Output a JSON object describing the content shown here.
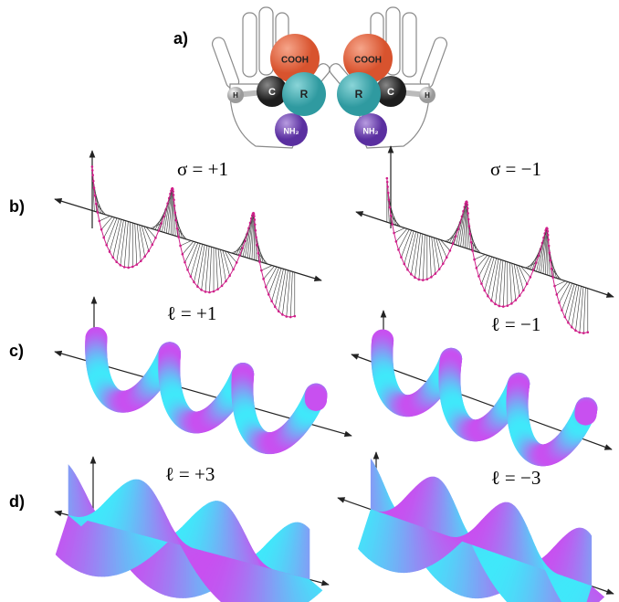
{
  "panel_a": {
    "label": "a)",
    "left_molecule": {
      "cooh": "COOH",
      "r": "R",
      "c": "C",
      "h": "H",
      "nh2": "NH₂"
    },
    "right_molecule": {
      "cooh": "COOH",
      "r": "R",
      "c": "C",
      "h": "H",
      "nh2": "NH₂"
    }
  },
  "panel_b": {
    "label": "b)",
    "left_caption": "σ = +1",
    "right_caption": "σ = −1"
  },
  "panel_c": {
    "label": "c)",
    "left_caption": "ℓ = +1",
    "right_caption": "ℓ = −1"
  },
  "panel_d": {
    "label": "d)",
    "left_caption": "ℓ = +3",
    "right_caption": "ℓ = −3"
  }
}
